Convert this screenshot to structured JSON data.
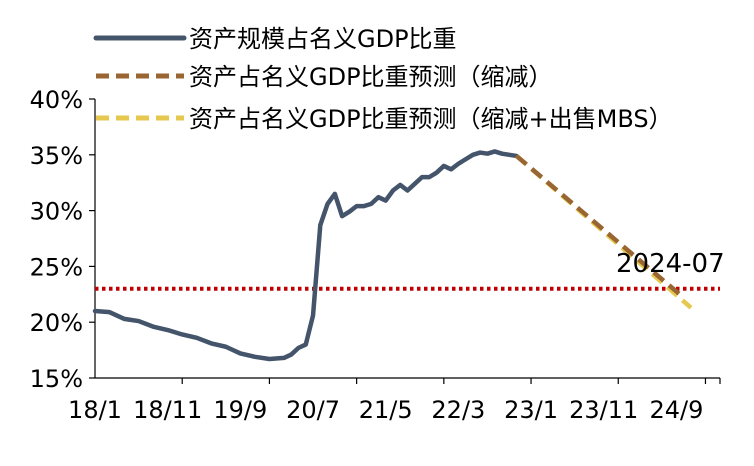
{
  "chart_data": {
    "type": "line",
    "title": "",
    "xlabel": "",
    "ylabel": "",
    "x_ticks": [
      "18/1",
      "18/11",
      "19/9",
      "20/7",
      "21/5",
      "22/3",
      "23/1",
      "23/11",
      "24/9"
    ],
    "x_range": [
      "2018-01",
      "2025-03"
    ],
    "y_ticks": [
      "15%",
      "20%",
      "25%",
      "30%",
      "35%",
      "40%"
    ],
    "ylim": [
      15,
      40
    ],
    "y_unit": "%",
    "grid": false,
    "legend_position": "top",
    "reference_line": {
      "value": 23,
      "color": "#c00000",
      "style": "dotted"
    },
    "annotation": {
      "text": "2024-07"
    },
    "series": [
      {
        "name": "资产规模占名义GDP比重",
        "color": "#44546a",
        "style": "solid",
        "points": [
          [
            "2018-01",
            21.0
          ],
          [
            "2018-03",
            20.9
          ],
          [
            "2018-05",
            20.3
          ],
          [
            "2018-07",
            20.1
          ],
          [
            "2018-09",
            19.6
          ],
          [
            "2018-11",
            19.3
          ],
          [
            "2019-01",
            18.9
          ],
          [
            "2019-03",
            18.6
          ],
          [
            "2019-05",
            18.1
          ],
          [
            "2019-07",
            17.8
          ],
          [
            "2019-09",
            17.2
          ],
          [
            "2019-11",
            16.9
          ],
          [
            "2020-01",
            16.7
          ],
          [
            "2020-03",
            16.8
          ],
          [
            "2020-04",
            17.1
          ],
          [
            "2020-05",
            17.7
          ],
          [
            "2020-06",
            18.0
          ],
          [
            "2020-07",
            20.6
          ],
          [
            "2020-08",
            28.7
          ],
          [
            "2020-09",
            30.6
          ],
          [
            "2020-10",
            31.5
          ],
          [
            "2020-11",
            29.5
          ],
          [
            "2020-12",
            29.9
          ],
          [
            "2021-01",
            30.4
          ],
          [
            "2021-02",
            30.4
          ],
          [
            "2021-03",
            30.6
          ],
          [
            "2021-04",
            31.2
          ],
          [
            "2021-05",
            30.9
          ],
          [
            "2021-06",
            31.8
          ],
          [
            "2021-07",
            32.3
          ],
          [
            "2021-08",
            31.8
          ],
          [
            "2021-09",
            32.4
          ],
          [
            "2021-10",
            33.0
          ],
          [
            "2021-11",
            33.0
          ],
          [
            "2021-12",
            33.4
          ],
          [
            "2022-01",
            34.0
          ],
          [
            "2022-02",
            33.7
          ],
          [
            "2022-03",
            34.2
          ],
          [
            "2022-04",
            34.6
          ],
          [
            "2022-05",
            35.0
          ],
          [
            "2022-06",
            35.2
          ],
          [
            "2022-07",
            35.1
          ],
          [
            "2022-08",
            35.3
          ],
          [
            "2022-09",
            35.1
          ],
          [
            "2022-10",
            35.0
          ],
          [
            "2022-11",
            34.9
          ]
        ]
      },
      {
        "name": "资产占名义GDP比重预测（缩减）",
        "color": "#996633",
        "style": "dashed",
        "points": [
          [
            "2022-11",
            34.9
          ],
          [
            "2024-10",
            22.2
          ]
        ]
      },
      {
        "name": "资产占名义GDP比重预测（缩减+出售MBS）",
        "color": "#e6c84e",
        "style": "dashed",
        "points": [
          [
            "2022-11",
            34.9
          ],
          [
            "2024-11",
            21.3
          ]
        ]
      }
    ]
  }
}
